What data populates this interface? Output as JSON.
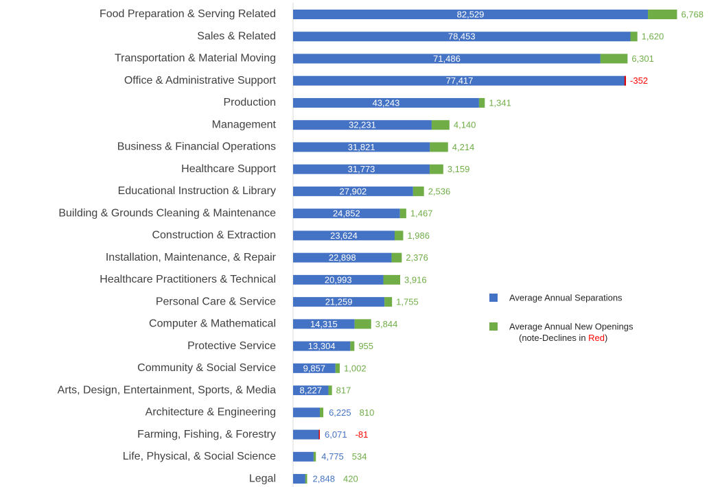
{
  "chart_data": {
    "type": "stacked_bar",
    "orientation": "horizontal",
    "categories": [
      "Food Preparation & Serving Related",
      "Sales & Related",
      "Transportation & Material Moving",
      "Office & Administrative Support",
      "Production",
      "Management",
      "Business & Financial Operations",
      "Healthcare Support",
      "Educational Instruction & Library",
      "Building & Grounds Cleaning & Maintenance",
      "Construction & Extraction",
      "Installation, Maintenance, & Repair",
      "Healthcare Practitioners & Technical",
      "Personal Care & Service",
      "Computer & Mathematical",
      "Protective Service",
      "Community & Social Service",
      "Arts, Design, Entertainment, Sports, & Media",
      "Architecture & Engineering",
      "Farming, Fishing, & Forestry",
      "Life, Physical, & Social Science",
      "Legal"
    ],
    "series": [
      {
        "name": "Average Annual Separations",
        "color": "#4472c4",
        "values": [
          82529,
          78453,
          71486,
          77417,
          43243,
          32231,
          31821,
          31773,
          27902,
          24852,
          23624,
          22898,
          20993,
          21259,
          14315,
          13304,
          9857,
          8227,
          6225,
          6071,
          4775,
          2848
        ],
        "value_labels": [
          "82,529",
          "78,453",
          "71,486",
          "77,417",
          "43,243",
          "32,231",
          "31,821",
          "31,773",
          "27,902",
          "24,852",
          "23,624",
          "22,898",
          "20,993",
          "21,259",
          "14,315",
          "13,304",
          "9,857",
          "8,227",
          "6,225",
          "6,071",
          "4,775",
          "2,848"
        ]
      },
      {
        "name": "Average Annual New Openings",
        "color": "#70ad47",
        "negative_color": "#e00000",
        "values": [
          6768,
          1620,
          6301,
          -352,
          1341,
          4140,
          4214,
          3159,
          2536,
          1467,
          1986,
          2376,
          3916,
          1755,
          3844,
          955,
          1002,
          817,
          810,
          -81,
          534,
          420
        ],
        "value_labels": [
          "6,768",
          "1,620",
          "6,301",
          "-352",
          "1,341",
          "4,140",
          "4,214",
          "3,159",
          "2,536",
          "1,467",
          "1,986",
          "2,376",
          "3,916",
          "1,755",
          "3,844",
          "955",
          "1,002",
          "817",
          "810",
          "-81",
          "534",
          "420"
        ]
      }
    ],
    "legend_note": [
      "(note-Declines in ",
      "Red",
      ")"
    ],
    "xlim": [
      0,
      100000
    ]
  }
}
